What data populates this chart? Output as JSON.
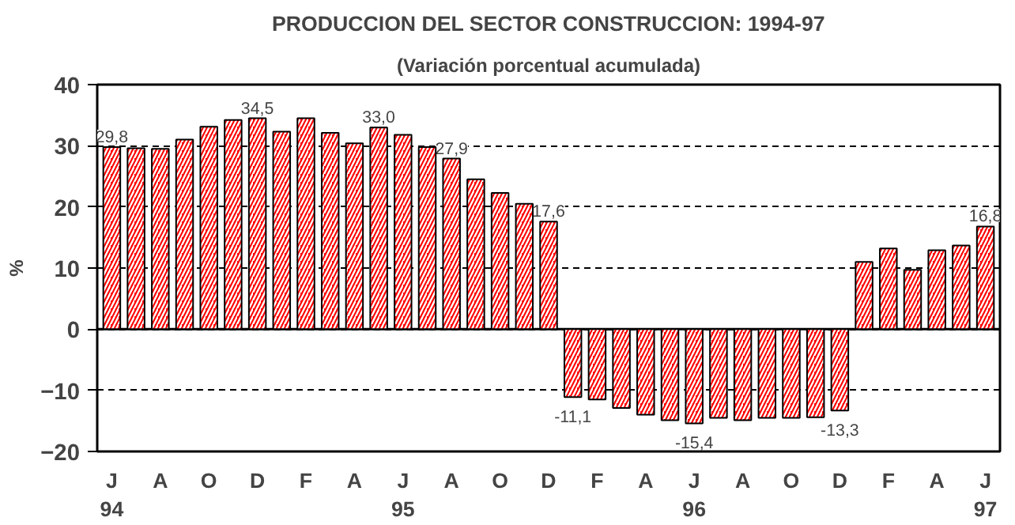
{
  "chart_data": {
    "type": "bar",
    "title": "PRODUCCION DEL SECTOR CONSTRUCCION: 1994-97",
    "subtitle": "(Variación porcentual acumulada)",
    "ylabel": "%",
    "categories": [
      "J\n94",
      null,
      "A",
      null,
      "O",
      null,
      "D",
      null,
      "F",
      null,
      "A",
      null,
      "J\n95",
      null,
      "A",
      null,
      "O",
      null,
      "D",
      null,
      "F",
      null,
      "A",
      null,
      "J\n96",
      null,
      "A",
      null,
      "O",
      null,
      "D",
      null,
      "F",
      null,
      "A",
      null,
      "J\n97"
    ],
    "values": [
      29.8,
      29.6,
      29.5,
      31.0,
      33.1,
      34.2,
      34.5,
      32.3,
      34.5,
      32.1,
      30.4,
      33.0,
      31.8,
      29.8,
      27.9,
      24.5,
      22.3,
      20.5,
      17.6,
      -11.1,
      -11.5,
      -12.9,
      -14.0,
      -14.9,
      -15.4,
      -14.5,
      -14.9,
      -14.5,
      -14.5,
      -14.4,
      -13.3,
      11.0,
      13.2,
      9.7,
      12.9,
      13.7,
      16.8
    ],
    "value_labels": [
      "29,8",
      null,
      null,
      null,
      null,
      null,
      "34,5",
      null,
      null,
      null,
      null,
      "33,0",
      null,
      null,
      "27,9",
      null,
      null,
      null,
      "17,6",
      "-11,1",
      null,
      null,
      null,
      null,
      "-15,4",
      null,
      null,
      null,
      null,
      null,
      "-13,3",
      null,
      null,
      null,
      null,
      null,
      "16,8"
    ],
    "color": "#ff0000",
    "ylim": [
      -20,
      40
    ],
    "yticks": [
      -20,
      -10,
      0,
      10,
      20,
      30,
      40
    ],
    "grid": "y",
    "ref_lines": [
      {
        "axis": "y",
        "value": 0,
        "label": null,
        "line_style": "solid"
      }
    ]
  }
}
